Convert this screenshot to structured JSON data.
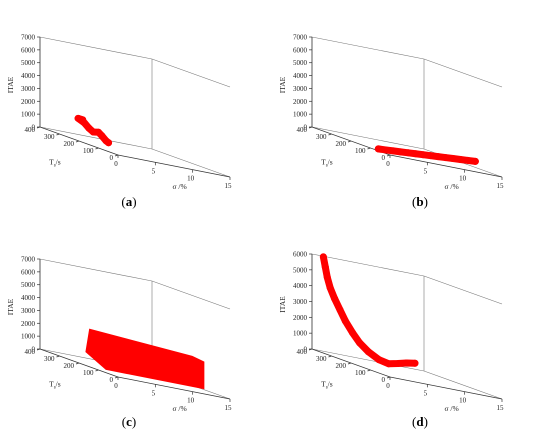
{
  "chart_data": [
    {
      "type": "scatter",
      "panel_label": "(a)",
      "zlabel": "ITAE",
      "xlabel": "σ /%",
      "ylabel": "T",
      "ylabel_sub": "s",
      "ylabel_unit": "/s",
      "xlim": [
        0,
        15
      ],
      "ylim": [
        0,
        400
      ],
      "zlim": [
        0,
        7000
      ],
      "x_ticks": [
        "0",
        "5",
        "10",
        "15"
      ],
      "y_ticks": [
        "0",
        "100",
        "200",
        "300",
        "400"
      ],
      "z_ticks": [
        "0",
        "1000",
        "2000",
        "3000",
        "4000",
        "5000",
        "6000",
        "7000"
      ],
      "series": [
        {
          "color": "#ff0000",
          "points": [
            [
              0.5,
              200,
              1700
            ],
            [
              0.4,
              220,
              1700
            ],
            [
              0.6,
              195,
              1500
            ],
            [
              0.8,
              180,
              1200
            ],
            [
              1.0,
              165,
              1000
            ],
            [
              1.3,
              150,
              1100
            ],
            [
              1.5,
              140,
              900
            ],
            [
              1.8,
              130,
              600
            ],
            [
              2.0,
              125,
              500
            ]
          ]
        }
      ]
    },
    {
      "type": "scatter",
      "panel_label": "(b)",
      "zlabel": "ITAE",
      "xlabel": "σ /%",
      "ylabel": "T",
      "ylabel_sub": "s",
      "ylabel_unit": "/s",
      "xlim": [
        0,
        15
      ],
      "ylim": [
        0,
        400
      ],
      "zlim": [
        0,
        7000
      ],
      "x_ticks": [
        "0",
        "5",
        "10",
        "15"
      ],
      "y_ticks": [
        "0",
        "100",
        "200",
        "300",
        "400"
      ],
      "z_ticks": [
        "0",
        "1000",
        "2000",
        "3000",
        "4000",
        "5000",
        "6000",
        "7000"
      ],
      "series": [
        {
          "color": "#ff0000",
          "points": [
            [
              0,
              60,
              150
            ],
            [
              1,
              60,
              180
            ],
            [
              2,
              60,
              220
            ],
            [
              3,
              60,
              260
            ],
            [
              4,
              60,
              300
            ],
            [
              5,
              60,
              340
            ],
            [
              6,
              60,
              380
            ],
            [
              7,
              60,
              420
            ],
            [
              8,
              60,
              460
            ],
            [
              9,
              60,
              500
            ],
            [
              10,
              60,
              540
            ],
            [
              11,
              60,
              580
            ],
            [
              12,
              60,
              620
            ],
            [
              13,
              60,
              660
            ]
          ]
        }
      ]
    },
    {
      "type": "scatter",
      "panel_label": "(c)",
      "zlabel": "ITAE",
      "xlabel": "σ /%",
      "ylabel": "T",
      "ylabel_sub": "s",
      "ylabel_unit": "/s",
      "xlim": [
        0,
        15
      ],
      "ylim": [
        0,
        400
      ],
      "zlim": [
        0,
        7000
      ],
      "x_ticks": [
        "0",
        "5",
        "10",
        "15"
      ],
      "y_ticks": [
        "0",
        "100",
        "200",
        "300",
        "400"
      ],
      "z_ticks": [
        "0",
        "1000",
        "2000",
        "3000",
        "4000",
        "5000",
        "6000",
        "7000"
      ],
      "series": [
        {
          "color": "#ff0000",
          "surface": [
            [
              0,
              60,
              300
            ],
            [
              13,
              60,
              300
            ],
            [
              13,
              60,
              2300
            ],
            [
              12,
              80,
              2500
            ],
            [
              2,
              220,
              2700
            ],
            [
              1,
              200,
              1000
            ]
          ]
        }
      ]
    },
    {
      "type": "scatter",
      "panel_label": "(d)",
      "zlabel": "ITAE",
      "xlabel": "σ /%",
      "ylabel": "T",
      "ylabel_sub": "s",
      "ylabel_unit": "/s",
      "xlim": [
        0,
        15
      ],
      "ylim": [
        0,
        400
      ],
      "zlim": [
        0,
        6000
      ],
      "x_ticks": [
        "0",
        "5",
        "10",
        "15"
      ],
      "y_ticks": [
        "0",
        "100",
        "200",
        "300",
        "400"
      ],
      "z_ticks": [
        "0",
        "1000",
        "2000",
        "3000",
        "4000",
        "5000",
        "6000"
      ],
      "series": [
        {
          "color": "#ff0000",
          "points": [
            [
              1,
              380,
              6000
            ],
            [
              1,
              370,
              5400
            ],
            [
              1,
              360,
              4800
            ],
            [
              1,
              345,
              4200
            ],
            [
              1.2,
              330,
              3600
            ],
            [
              1.4,
              310,
              3000
            ],
            [
              1.6,
              290,
              2400
            ],
            [
              1.9,
              265,
              1800
            ],
            [
              2.2,
              240,
              1300
            ],
            [
              2.6,
              210,
              900
            ],
            [
              3.2,
              180,
              600
            ],
            [
              4,
              160,
              500
            ],
            [
              5,
              150,
              650
            ],
            [
              6,
              145,
              800
            ],
            [
              7,
              140,
              900
            ]
          ]
        }
      ]
    }
  ]
}
